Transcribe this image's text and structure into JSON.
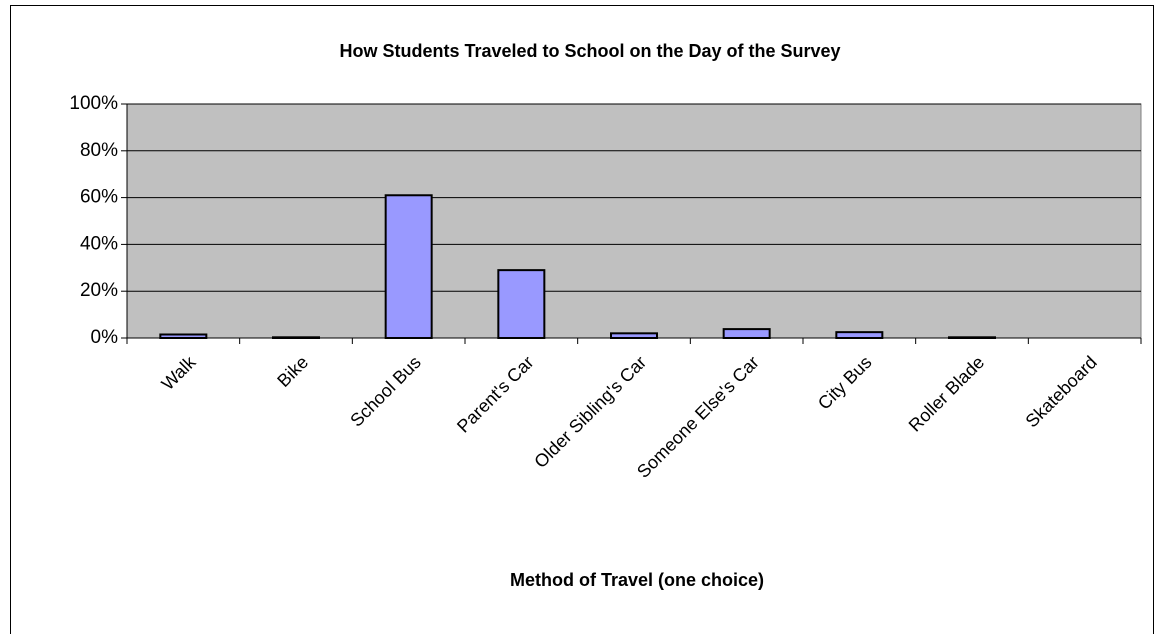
{
  "chart_data": {
    "type": "bar",
    "title": "How Students Traveled to School on the Day of the Survey",
    "x_label": "Method of Travel (one choice)",
    "categories": [
      "Walk",
      "Bike",
      "School Bus",
      "Parent's Car",
      "Older Sibling's Car",
      "Someone Else's Car",
      "City Bus",
      "Roller Blade",
      "Skateboard"
    ],
    "values": [
      1.5,
      0.3,
      61,
      29,
      2,
      3.8,
      2.5,
      0.3,
      0
    ],
    "color": "#9999ff",
    "ylim": [
      0,
      100
    ],
    "yticks": [
      {
        "value": 0,
        "label": "0%"
      },
      {
        "value": 20,
        "label": "20%"
      },
      {
        "value": 40,
        "label": "40%"
      },
      {
        "value": 60,
        "label": "60%"
      },
      {
        "value": 80,
        "label": "80%"
      },
      {
        "value": 100,
        "label": "100%"
      }
    ],
    "grid": true
  }
}
